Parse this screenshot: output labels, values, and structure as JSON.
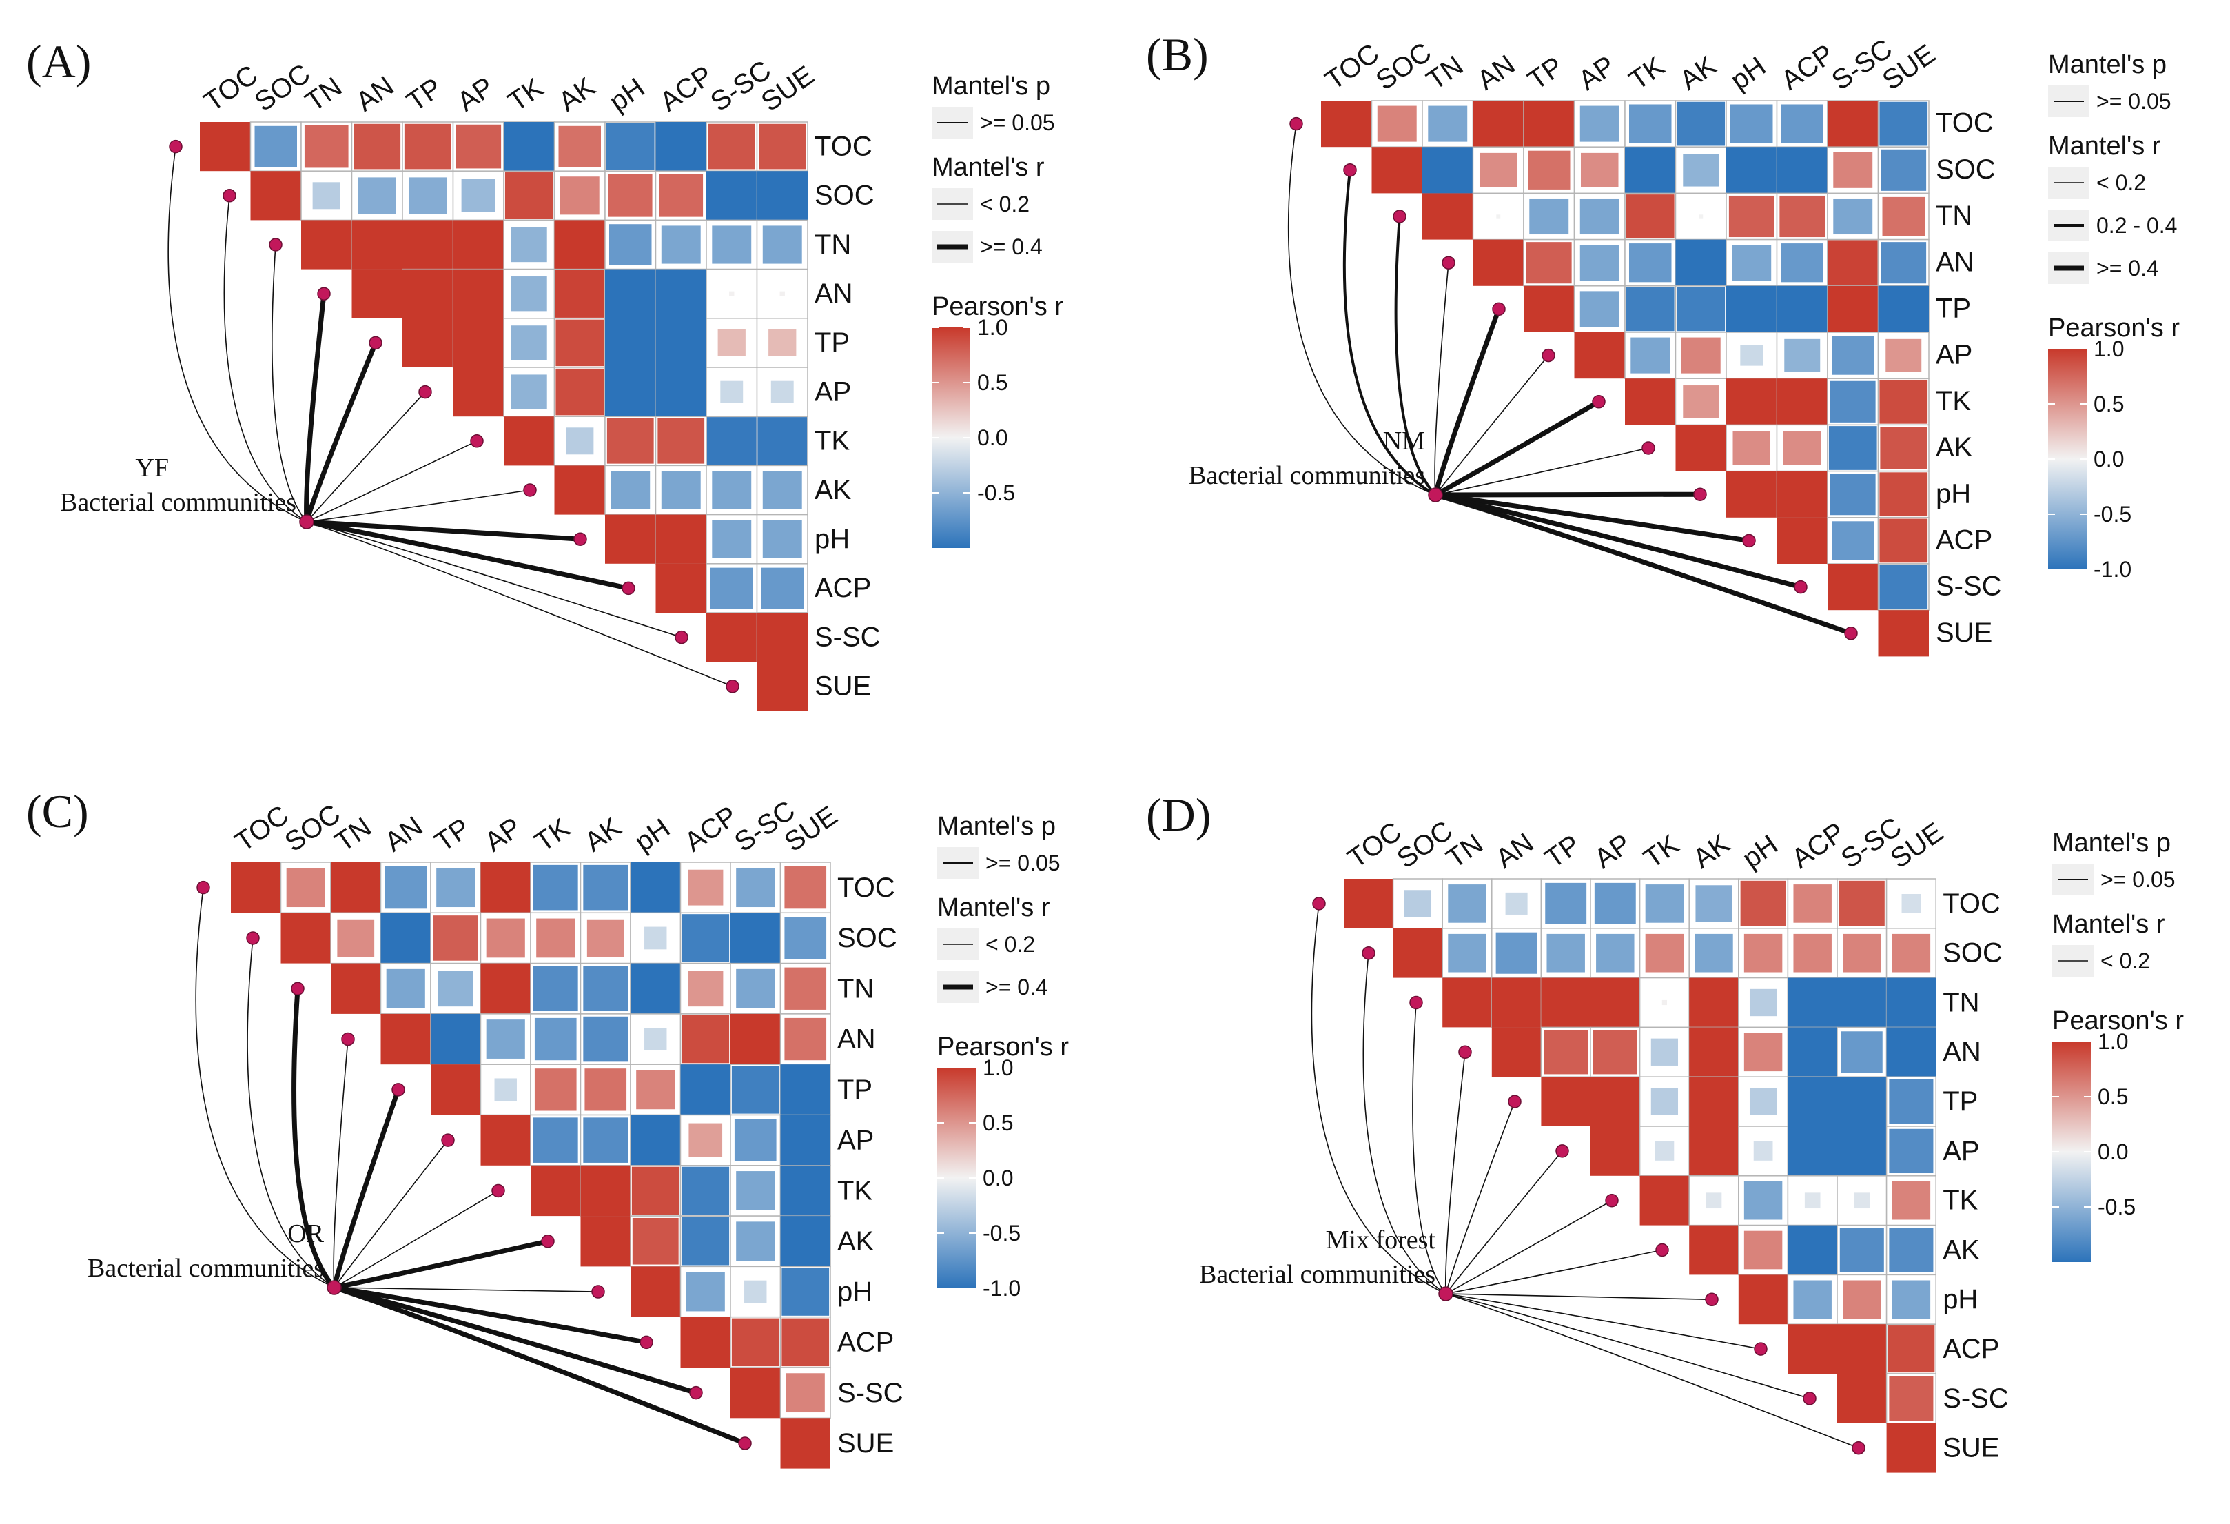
{
  "figure_type": "Mantel test heatmaps (4 panels)",
  "chart_data": [
    {
      "type": "heatmap",
      "panel": "(A)",
      "group": [
        "YF",
        "Bacterial communities"
      ],
      "variables": [
        "TOC",
        "SOC",
        "TN",
        "AN",
        "TP",
        "AP",
        "TK",
        "AK",
        "pH",
        "ACP",
        "S-SC",
        "SUE"
      ],
      "pearson_upper_triangle": [
        [
          1.0,
          -0.7,
          0.75,
          0.85,
          0.85,
          0.8,
          -1.0,
          0.7,
          -0.9,
          -1.0,
          0.85,
          0.85
        ],
        [
          1.0,
          -0.3,
          -0.55,
          -0.55,
          -0.45,
          0.9,
          0.6,
          0.75,
          0.75,
          -1.0,
          -1.0
        ],
        [
          1.0,
          1.0,
          1.0,
          1.0,
          -0.5,
          1.0,
          -0.7,
          -0.6,
          -0.6,
          -0.6
        ],
        [
          1.0,
          1.0,
          1.0,
          -0.5,
          0.95,
          -1.0,
          -1.0,
          0.01,
          0.01
        ],
        [
          1.0,
          1.0,
          -0.5,
          0.9,
          -1.0,
          -1.0,
          0.3,
          0.3
        ],
        [
          1.0,
          -0.5,
          0.9,
          -1.0,
          -1.0,
          -0.2,
          -0.2
        ],
        [
          1.0,
          -0.3,
          0.85,
          0.85,
          -0.95,
          -0.95
        ],
        [
          1.0,
          -0.6,
          -0.6,
          -0.6,
          -0.6
        ],
        [
          1.0,
          1.0,
          -0.6,
          -0.6
        ],
        [
          1.0,
          -0.7,
          -0.7
        ],
        [
          1.0,
          1.0
        ],
        [
          1.0
        ]
      ],
      "mantel_r_class": [
        "<0.2",
        "<0.2",
        "<0.2",
        ">=0.4",
        ">=0.4",
        "<0.2",
        "<0.2",
        "<0.2",
        ">=0.4",
        ">=0.4",
        "<0.2",
        "<0.2"
      ],
      "mantel_p": ">= 0.05",
      "legend": {
        "mantel_p_title": "Mantel's p",
        "mantel_p_items": [
          ">= 0.05"
        ],
        "mantel_r_title": "Mantel's r",
        "mantel_r_items": [
          "< 0.2",
          ">= 0.4"
        ],
        "pearson_title": "Pearson's r",
        "pearson_ticks": [
          "1.0",
          "0.5",
          "0.0",
          "-0.5"
        ]
      }
    },
    {
      "type": "heatmap",
      "panel": "(B)",
      "group": [
        "NM",
        "Bacterial communities"
      ],
      "variables": [
        "TOC",
        "SOC",
        "TN",
        "AN",
        "TP",
        "AP",
        "TK",
        "AK",
        "pH",
        "ACP",
        "S-SC",
        "SUE"
      ],
      "pearson_upper_triangle": [
        [
          1.0,
          0.6,
          -0.6,
          1.0,
          1.0,
          -0.6,
          -0.7,
          -0.9,
          -0.7,
          -0.7,
          1.0,
          -0.9
        ],
        [
          1.0,
          -1.0,
          0.55,
          0.7,
          0.55,
          -1.0,
          -0.5,
          -1.0,
          -1.0,
          0.6,
          -0.8
        ],
        [
          1.0,
          0.0,
          -0.6,
          -0.6,
          0.9,
          0.0,
          0.8,
          0.8,
          -0.6,
          0.7
        ],
        [
          1.0,
          0.8,
          -0.6,
          -0.7,
          -1.0,
          -0.6,
          -0.7,
          0.95,
          -0.8
        ],
        [
          1.0,
          -0.6,
          -0.9,
          -0.9,
          -1.0,
          -1.0,
          1.0,
          -1.0
        ],
        [
          1.0,
          -0.6,
          0.6,
          -0.2,
          -0.5,
          -0.7,
          0.5
        ],
        [
          1.0,
          0.5,
          1.0,
          1.0,
          -0.8,
          0.9
        ],
        [
          1.0,
          0.55,
          0.55,
          -0.9,
          0.85
        ],
        [
          1.0,
          1.0,
          -0.8,
          0.9
        ],
        [
          1.0,
          -0.7,
          0.9
        ],
        [
          1.0,
          -0.9
        ],
        [
          1.0
        ]
      ],
      "mantel_r_class": [
        "<0.2",
        "0.2-0.4",
        "0.2-0.4",
        "<0.2",
        ">=0.4",
        "<0.2",
        ">=0.4",
        "<0.2",
        ">=0.4",
        ">=0.4",
        ">=0.4",
        ">=0.4"
      ],
      "mantel_p": ">= 0.05",
      "legend": {
        "mantel_p_title": "Mantel's p",
        "mantel_p_items": [
          ">= 0.05"
        ],
        "mantel_r_title": "Mantel's r",
        "mantel_r_items": [
          "< 0.2",
          "0.2 - 0.4",
          ">= 0.4"
        ],
        "pearson_title": "Pearson's r",
        "pearson_ticks": [
          "1.0",
          "0.5",
          "0.0",
          "-0.5",
          "-1.0"
        ]
      }
    },
    {
      "type": "heatmap",
      "panel": "(C)",
      "group": [
        "OR",
        "Bacterial communities"
      ],
      "variables": [
        "TOC",
        "SOC",
        "TN",
        "AN",
        "TP",
        "AP",
        "TK",
        "AK",
        "pH",
        "ACP",
        "S-SC",
        "SUE"
      ],
      "pearson_upper_triangle": [
        [
          1.0,
          0.6,
          1.0,
          -0.7,
          -0.6,
          1.0,
          -0.8,
          -0.8,
          -1.0,
          0.5,
          -0.6,
          0.7
        ],
        [
          1.0,
          0.55,
          -1.0,
          0.8,
          0.6,
          0.6,
          0.55,
          -0.2,
          -0.9,
          -1.0,
          -0.7
        ],
        [
          1.0,
          -0.6,
          -0.5,
          1.0,
          -0.8,
          -0.8,
          -1.0,
          0.5,
          -0.6,
          0.7
        ],
        [
          1.0,
          -1.0,
          -0.6,
          -0.7,
          -0.8,
          -0.2,
          0.9,
          1.0,
          0.7
        ],
        [
          1.0,
          -0.2,
          0.7,
          0.7,
          0.6,
          -1.0,
          -0.9,
          -1.0
        ],
        [
          1.0,
          -0.8,
          -0.8,
          -1.0,
          0.45,
          -0.7,
          -1.0
        ],
        [
          1.0,
          1.0,
          0.9,
          -0.9,
          -0.6,
          -1.0
        ],
        [
          1.0,
          0.85,
          -0.9,
          -0.6,
          -1.0
        ],
        [
          1.0,
          -0.6,
          -0.2,
          -0.9
        ],
        [
          1.0,
          0.9,
          0.9
        ],
        [
          1.0,
          0.6
        ],
        [
          1.0
        ]
      ],
      "mantel_r_class": [
        "<0.2",
        "<0.2",
        ">=0.4",
        "<0.2",
        ">=0.4",
        "<0.2",
        "<0.2",
        ">=0.4",
        "<0.2",
        ">=0.4",
        ">=0.4",
        ">=0.4"
      ],
      "mantel_p": ">= 0.05",
      "legend": {
        "mantel_p_title": "Mantel's p",
        "mantel_p_items": [
          ">= 0.05"
        ],
        "mantel_r_title": "Mantel's r",
        "mantel_r_items": [
          "< 0.2",
          ">= 0.4"
        ],
        "pearson_title": "Pearson's r",
        "pearson_ticks": [
          "1.0",
          "0.5",
          "0.0",
          "-0.5",
          "-1.0"
        ]
      }
    },
    {
      "type": "heatmap",
      "panel": "(D)",
      "group": [
        "Mix forest",
        "Bacterial communities"
      ],
      "variables": [
        "TOC",
        "SOC",
        "TN",
        "AN",
        "TP",
        "AP",
        "TK",
        "AK",
        "pH",
        "ACP",
        "S-SC",
        "SUE"
      ],
      "pearson_upper_triangle": [
        [
          1.0,
          -0.3,
          -0.6,
          -0.2,
          -0.7,
          -0.7,
          -0.6,
          -0.55,
          0.85,
          0.6,
          0.85,
          -0.15
        ],
        [
          1.0,
          -0.6,
          -0.7,
          -0.6,
          -0.6,
          0.6,
          -0.6,
          0.6,
          0.6,
          0.6,
          0.6
        ],
        [
          1.0,
          1.0,
          1.0,
          1.0,
          0.01,
          1.0,
          -0.3,
          -1.0,
          -1.0,
          -1.0
        ],
        [
          1.0,
          0.8,
          0.8,
          -0.3,
          1.0,
          0.6,
          -1.0,
          -0.7,
          -1.0
        ],
        [
          1.0,
          1.0,
          -0.3,
          1.0,
          -0.3,
          -1.0,
          -1.0,
          -0.8
        ],
        [
          1.0,
          -0.15,
          1.0,
          -0.15,
          -1.0,
          -1.0,
          -0.8
        ],
        [
          1.0,
          -0.1,
          -0.6,
          -0.1,
          -0.1,
          0.6
        ],
        [
          1.0,
          0.6,
          -1.0,
          -0.8,
          -0.8
        ],
        [
          1.0,
          -0.6,
          0.6,
          -0.6
        ],
        [
          1.0,
          1.0,
          0.9
        ],
        [
          1.0,
          0.8
        ],
        [
          1.0
        ]
      ],
      "mantel_r_class": [
        "<0.2",
        "<0.2",
        "<0.2",
        "<0.2",
        "<0.2",
        "<0.2",
        "<0.2",
        "<0.2",
        "<0.2",
        "<0.2",
        "<0.2",
        "<0.2"
      ],
      "mantel_p": ">= 0.05",
      "legend": {
        "mantel_p_title": "Mantel's p",
        "mantel_p_items": [
          ">= 0.05"
        ],
        "mantel_r_title": "Mantel's r",
        "mantel_r_items": [
          "< 0.2"
        ],
        "pearson_title": "Pearson's r",
        "pearson_ticks": [
          "1.0",
          "0.5",
          "0.0",
          "-0.5"
        ]
      }
    }
  ],
  "colors": {
    "positive": "#c8392b",
    "neutral": "#f2f2f2",
    "negative": "#2c73ba",
    "link": "#111111",
    "node": "#c2185b"
  }
}
